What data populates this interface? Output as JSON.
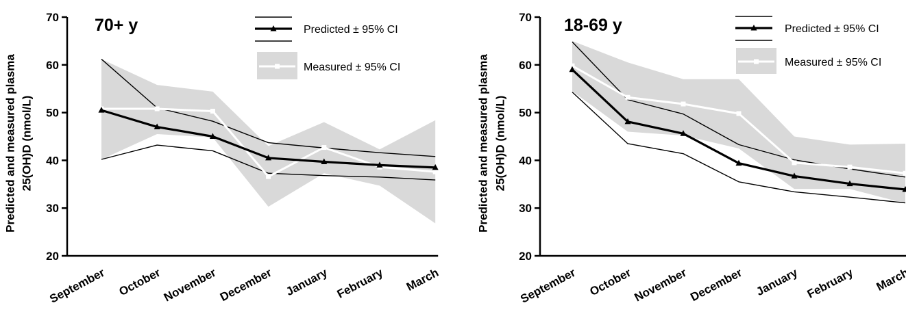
{
  "chart_data": [
    {
      "type": "line",
      "title": "70+ y",
      "ylabel_line1": "Predicted and measured plasma",
      "ylabel_line2": "25(OH)D (nmol/L)",
      "ylim": [
        20,
        70
      ],
      "yticks": [
        "20",
        "30",
        "40",
        "50",
        "60",
        "70"
      ],
      "categories": [
        "September",
        "October",
        "November",
        "December",
        "January",
        "February",
        "March"
      ],
      "legend": {
        "placement": "top-right",
        "predicted": "Predicted ± 95% CI",
        "measured": "Measured ± 95% CI"
      },
      "series": [
        {
          "name": "Predicted",
          "values": [
            50.5,
            47.0,
            45.0,
            40.5,
            39.7,
            39.0,
            38.5
          ],
          "ci_lower": [
            40.2,
            43.2,
            42.0,
            37.3,
            36.8,
            36.5,
            35.9
          ],
          "ci_upper": [
            61.2,
            51.0,
            48.2,
            43.7,
            42.6,
            41.6,
            40.8
          ]
        },
        {
          "name": "Measured",
          "values": [
            50.8,
            50.8,
            50.3,
            36.6,
            42.7,
            38.6,
            37.6
          ],
          "ci_lower": [
            40.2,
            45.5,
            44.8,
            30.3,
            37.3,
            34.7,
            26.8
          ],
          "ci_upper": [
            61.2,
            55.8,
            54.4,
            43.0,
            48.0,
            42.3,
            48.4
          ]
        }
      ]
    },
    {
      "type": "line",
      "title": "18-69 y",
      "ylabel_line1": "Predicted and measured plasma",
      "ylabel_line2": "25(OH)D (nmol/L)",
      "ylim": [
        20,
        70
      ],
      "yticks": [
        "20",
        "30",
        "40",
        "50",
        "60",
        "70"
      ],
      "categories": [
        "September",
        "October",
        "November",
        "December",
        "January",
        "February",
        "March"
      ],
      "legend": {
        "placement": "top-right",
        "predicted": "Predicted ± 95% CI",
        "measured": "Measured ± 95% CI"
      },
      "series": [
        {
          "name": "Predicted",
          "values": [
            59.0,
            48.1,
            45.6,
            39.4,
            36.7,
            35.1,
            33.9
          ],
          "ci_lower": [
            54.3,
            43.5,
            41.4,
            35.5,
            33.4,
            32.3,
            31.1
          ],
          "ci_upper": [
            64.8,
            52.7,
            49.7,
            43.3,
            40.1,
            38.2,
            36.5
          ]
        },
        {
          "name": "Measured",
          "values": [
            59.8,
            53.2,
            51.8,
            49.8,
            39.5,
            38.6,
            37.3
          ],
          "ci_lower": [
            54.5,
            46.0,
            45.2,
            42.5,
            34.0,
            34.0,
            31.0
          ],
          "ci_upper": [
            65.0,
            60.5,
            57.0,
            57.0,
            45.0,
            43.3,
            43.5
          ]
        }
      ]
    }
  ]
}
